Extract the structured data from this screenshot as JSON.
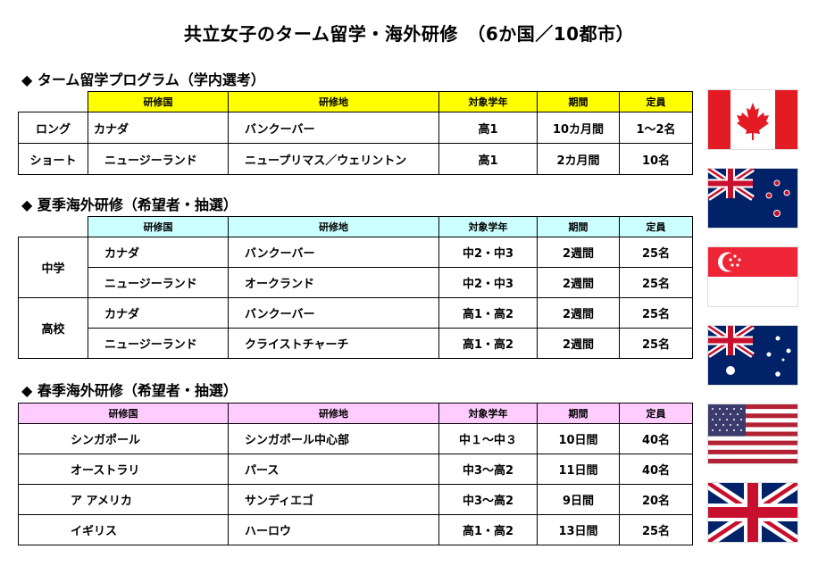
{
  "title": "共立女子のターム留学・海外研修　（6か国／10都市）",
  "headers": {
    "country": "研修国",
    "place": "研修地",
    "grade": "対象学年",
    "period": "期間",
    "capacity": "定員"
  },
  "section1": {
    "heading": "◆ ターム留学プログラム（学内選考）",
    "rows": [
      {
        "type": "ロング",
        "country": "カナダ",
        "place": "バンクーバー",
        "grade": "高1",
        "period": "10カ月間",
        "capacity": "1〜2名"
      },
      {
        "type": "ショート",
        "country": "ニュージーランド",
        "place": "ニュープリマス／ウェリントン",
        "grade": "高1",
        "period": "2カ月間",
        "capacity": "10名"
      }
    ]
  },
  "section2": {
    "heading": "◆ 夏季海外研修（希望者・抽選）",
    "groups": [
      {
        "label": "中学",
        "rows": [
          {
            "country": "カナダ",
            "place": "バンクーバー",
            "grade": "中2・中3",
            "period": "2週間",
            "capacity": "25名"
          },
          {
            "country": "ニュージーランド",
            "place": "オークランド",
            "grade": "中2・中3",
            "period": "2週間",
            "capacity": "25名"
          }
        ]
      },
      {
        "label": "高校",
        "rows": [
          {
            "country": "カナダ",
            "place": "バンクーバー",
            "grade": "高1・高2",
            "period": "2週間",
            "capacity": "25名"
          },
          {
            "country": "ニュージーランド",
            "place": "クライストチャーチ",
            "grade": "高1・高2",
            "period": "2週間",
            "capacity": "25名"
          }
        ]
      }
    ]
  },
  "section3": {
    "heading": "◆ 春季海外研修（希望者・抽選）",
    "rows": [
      {
        "country": "シンガポール",
        "place": "シンガポール中心部",
        "grade": "中１〜中３",
        "period": "10日間",
        "capacity": "40名"
      },
      {
        "country": "オーストラリ",
        "place": "パース",
        "grade": "中3〜高2",
        "period": "11日間",
        "capacity": "40名"
      },
      {
        "country": "ア アメリカ",
        "place": "サンディエゴ",
        "grade": "中3〜高2",
        "period": "9日間",
        "capacity": "20名"
      },
      {
        "country": "イギリス",
        "place": "ハーロウ",
        "grade": "高1・高2",
        "period": "13日間",
        "capacity": "25名"
      }
    ]
  },
  "flags": [
    "canada-flag",
    "new-zealand-flag",
    "singapore-flag",
    "australia-flag",
    "usa-flag",
    "uk-flag"
  ],
  "colors": {
    "section1_header": "#ffff00",
    "section2_header": "#ccffff",
    "section3_header": "#ffccff"
  }
}
